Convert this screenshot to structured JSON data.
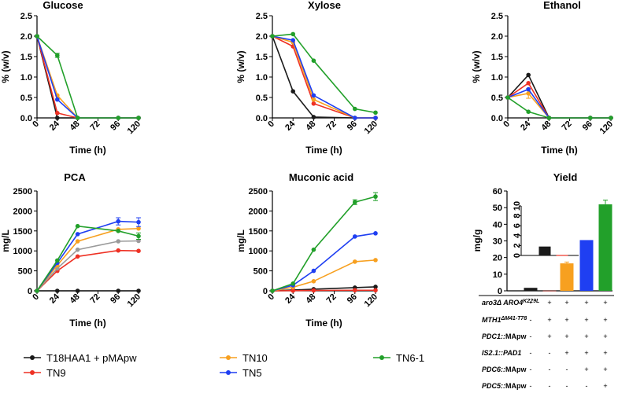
{
  "colors": {
    "T18HAA1 + pMApw": "#1a1a1a",
    "TN9": "#ee3124",
    "TN10": "#f7a020",
    "TN5": "#1f3ff2",
    "TN6-1": "#22a02a",
    "gray_series": "#9a9a9a"
  },
  "chart_data": [
    {
      "id": "glucose",
      "type": "line",
      "title": "Glucose",
      "xlabel": "Time (h)",
      "ylabel": "% (w/v)",
      "x_ticks": [
        "0",
        "24",
        "48",
        "72",
        "96",
        "120"
      ],
      "y_ticks": [
        "0.0",
        "0.5",
        "1.0",
        "1.5",
        "2.0",
        "2.5"
      ],
      "xlim": [
        0,
        120
      ],
      "ylim": [
        0,
        2.5
      ],
      "series": [
        {
          "name": "T18HAA1 + pMApw",
          "x": [
            0,
            24,
            48,
            96,
            120
          ],
          "y": [
            2.0,
            0.0,
            0.0,
            0.0,
            0.0
          ]
        },
        {
          "name": "TN9",
          "x": [
            0,
            24,
            48,
            96,
            120
          ],
          "y": [
            2.0,
            0.12,
            0.0,
            0.0,
            0.0
          ]
        },
        {
          "name": "TN10",
          "x": [
            0,
            24,
            48,
            96,
            120
          ],
          "y": [
            2.0,
            0.55,
            0.0,
            0.0,
            0.0
          ]
        },
        {
          "name": "TN5",
          "x": [
            0,
            24,
            48,
            96,
            120
          ],
          "y": [
            2.0,
            0.45,
            0.0,
            0.0,
            0.0
          ]
        },
        {
          "name": "TN6-1",
          "x": [
            0,
            24,
            48,
            96,
            120
          ],
          "y": [
            2.0,
            1.53,
            0.0,
            0.0,
            0.0
          ],
          "err": [
            0,
            0.05,
            0,
            0,
            0
          ]
        }
      ]
    },
    {
      "id": "xylose",
      "type": "line",
      "title": "Xylose",
      "xlabel": "Time (h)",
      "ylabel": "% (w/v)",
      "x_ticks": [
        "0",
        "24",
        "48",
        "72",
        "96",
        "120"
      ],
      "y_ticks": [
        "0.0",
        "0.5",
        "1.0",
        "1.5",
        "2.0",
        "2.5"
      ],
      "xlim": [
        0,
        120
      ],
      "ylim": [
        0,
        2.5
      ],
      "series": [
        {
          "name": "T18HAA1 + pMApw",
          "x": [
            0,
            24,
            48,
            96,
            120
          ],
          "y": [
            2.0,
            0.65,
            0.02,
            0.0,
            0.0
          ]
        },
        {
          "name": "TN9",
          "x": [
            0,
            24,
            48,
            96,
            120
          ],
          "y": [
            2.0,
            1.75,
            0.35,
            0.0,
            0.0
          ]
        },
        {
          "name": "TN10",
          "x": [
            0,
            24,
            48,
            96,
            120
          ],
          "y": [
            2.0,
            1.85,
            0.45,
            0.0,
            0.0
          ]
        },
        {
          "name": "TN5",
          "x": [
            0,
            24,
            48,
            96,
            120
          ],
          "y": [
            2.0,
            1.9,
            0.55,
            0.0,
            0.0
          ]
        },
        {
          "name": "TN6-1",
          "x": [
            0,
            24,
            48,
            96,
            120
          ],
          "y": [
            2.0,
            2.05,
            1.4,
            0.22,
            0.13
          ]
        }
      ]
    },
    {
      "id": "ethanol",
      "type": "line",
      "title": "Ethanol",
      "xlabel": "Time (h)",
      "ylabel": "% (w/v)",
      "x_ticks": [
        "0",
        "24",
        "48",
        "72",
        "96",
        "120"
      ],
      "y_ticks": [
        "0.0",
        "0.5",
        "1.0",
        "1.5",
        "2.0",
        "2.5"
      ],
      "xlim": [
        0,
        120
      ],
      "ylim": [
        0,
        2.5
      ],
      "series": [
        {
          "name": "T18HAA1 + pMApw",
          "x": [
            0,
            24,
            48,
            96,
            120
          ],
          "y": [
            0.5,
            1.05,
            0.0,
            0.0,
            0.0
          ]
        },
        {
          "name": "TN9",
          "x": [
            0,
            24,
            48,
            96,
            120
          ],
          "y": [
            0.5,
            0.85,
            0.0,
            0.0,
            0.0
          ]
        },
        {
          "name": "TN10",
          "x": [
            0,
            24,
            48,
            96,
            120
          ],
          "y": [
            0.5,
            0.6,
            0.0,
            0.0,
            0.0
          ],
          "err": [
            0,
            0.12,
            0,
            0,
            0
          ]
        },
        {
          "name": "TN5",
          "x": [
            0,
            24,
            48,
            96,
            120
          ],
          "y": [
            0.5,
            0.7,
            0.0,
            0.0,
            0.0
          ]
        },
        {
          "name": "TN6-1",
          "x": [
            0,
            24,
            48,
            96,
            120
          ],
          "y": [
            0.5,
            0.15,
            0.0,
            0.0,
            0.0
          ]
        }
      ]
    },
    {
      "id": "pca",
      "type": "line",
      "title": "PCA",
      "xlabel": "Time (h)",
      "ylabel": "mg/L",
      "x_ticks": [
        "0",
        "24",
        "48",
        "72",
        "96",
        "120"
      ],
      "y_ticks": [
        "0",
        "500",
        "1000",
        "1500",
        "2000",
        "2500"
      ],
      "xlim": [
        0,
        120
      ],
      "ylim": [
        0,
        2500
      ],
      "series": [
        {
          "name": "T18HAA1 + pMApw",
          "x": [
            0,
            24,
            48,
            96,
            120
          ],
          "y": [
            0,
            0,
            0,
            0,
            0
          ]
        },
        {
          "name": "TN9",
          "x": [
            0,
            24,
            48,
            96,
            120
          ],
          "y": [
            0,
            500,
            860,
            1010,
            1000
          ]
        },
        {
          "name": "gray",
          "x": [
            0,
            24,
            48,
            96,
            120
          ],
          "y": [
            0,
            560,
            1030,
            1240,
            1250
          ]
        },
        {
          "name": "TN10",
          "x": [
            0,
            24,
            48,
            96,
            120
          ],
          "y": [
            0,
            640,
            1240,
            1540,
            1560
          ]
        },
        {
          "name": "TN5",
          "x": [
            0,
            24,
            48,
            96,
            120
          ],
          "y": [
            0,
            700,
            1420,
            1740,
            1720
          ],
          "err": [
            0,
            0,
            0,
            90,
            110
          ]
        },
        {
          "name": "TN6-1",
          "x": [
            0,
            24,
            48,
            96,
            120
          ],
          "y": [
            0,
            760,
            1620,
            1500,
            1370
          ],
          "err": [
            0,
            0,
            0,
            0,
            80
          ]
        }
      ]
    },
    {
      "id": "muconic",
      "type": "line",
      "title": "Muconic acid",
      "xlabel": "Time (h)",
      "ylabel": "mg/L",
      "x_ticks": [
        "0",
        "24",
        "48",
        "72",
        "96",
        "120"
      ],
      "y_ticks": [
        "0",
        "500",
        "1000",
        "1500",
        "2000",
        "2500"
      ],
      "xlim": [
        0,
        120
      ],
      "ylim": [
        0,
        2500
      ],
      "series": [
        {
          "name": "T18HAA1 + pMApw",
          "x": [
            0,
            24,
            48,
            96,
            120
          ],
          "y": [
            0,
            20,
            40,
            80,
            100
          ]
        },
        {
          "name": "TN9",
          "x": [
            0,
            24,
            48,
            96,
            120
          ],
          "y": [
            0,
            5,
            10,
            15,
            15
          ]
        },
        {
          "name": "TN10",
          "x": [
            0,
            24,
            48,
            96,
            120
          ],
          "y": [
            0,
            90,
            240,
            730,
            770
          ]
        },
        {
          "name": "TN5",
          "x": [
            0,
            24,
            48,
            96,
            120
          ],
          "y": [
            0,
            140,
            500,
            1360,
            1440
          ]
        },
        {
          "name": "TN6-1",
          "x": [
            0,
            24,
            48,
            96,
            120
          ],
          "y": [
            0,
            180,
            1030,
            2220,
            2360
          ],
          "err": [
            0,
            0,
            0,
            60,
            100
          ]
        }
      ]
    },
    {
      "id": "yield",
      "type": "bar",
      "title": "Yield",
      "ylabel": "mg/g",
      "y_ticks": [
        "0",
        "10",
        "20",
        "30",
        "40",
        "50",
        "60"
      ],
      "ylim": [
        0,
        60
      ],
      "categories": [
        "T18HAA1 + pMApw",
        "TN9",
        "TN10",
        "TN5",
        "TN6-1"
      ],
      "values": [
        1.8,
        0.1,
        16.5,
        30.5,
        52.0
      ],
      "err": [
        0,
        0,
        0.8,
        0,
        2.5
      ],
      "inset": {
        "y_ticks": [
          "0",
          "2",
          "4",
          "6",
          "8",
          "10"
        ],
        "ylim": [
          0,
          10
        ],
        "values": [
          1.8,
          0.1
        ]
      }
    }
  ],
  "legend": [
    {
      "label": "T18HAA1 + pMApw",
      "color": "#1a1a1a"
    },
    {
      "label": "TN10",
      "color": "#f7a020"
    },
    {
      "label": "TN6-1",
      "color": "#22a02a"
    },
    {
      "label": "TN9",
      "color": "#ee3124"
    },
    {
      "label": "TN5",
      "color": "#1f3ff2"
    }
  ],
  "genotype_table": {
    "rows": [
      {
        "label": "aro3Δ ARO4",
        "sup": "K229L",
        "marks": [
          "-",
          "+",
          "+",
          "+",
          "+"
        ]
      },
      {
        "label": "MTH1",
        "sup": "ΔM41-T78",
        "marks": [
          "-",
          "+",
          "+",
          "+",
          "+"
        ]
      },
      {
        "label": "PDC1::",
        "suffix": "MApw",
        "marks": [
          "-",
          "+",
          "+",
          "+",
          "+"
        ]
      },
      {
        "label": "IS2.1::",
        "suffix_italic": "PAD1",
        "marks": [
          "-",
          "-",
          "+",
          "+",
          "+"
        ]
      },
      {
        "label": "PDC6::",
        "suffix": "MApw",
        "marks": [
          "-",
          "-",
          "-",
          "+",
          "+"
        ]
      },
      {
        "label": "PDC5::",
        "suffix": "MApw",
        "marks": [
          "-",
          "-",
          "-",
          "-",
          "+"
        ]
      }
    ]
  }
}
